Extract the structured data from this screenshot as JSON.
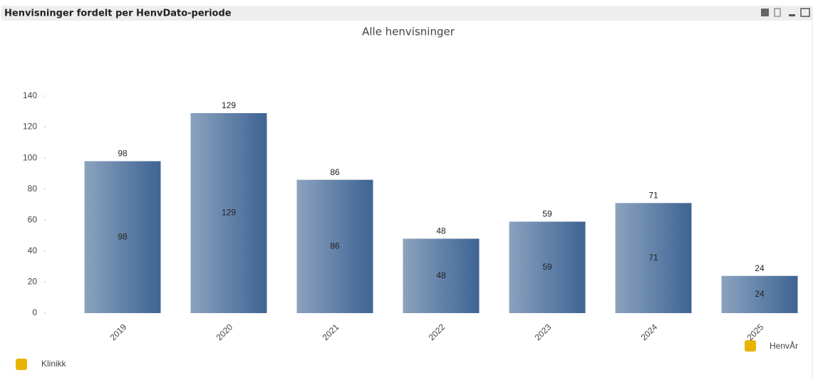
{
  "window_title": "Henvisninger fordelt per HenvDato-periode",
  "chart_data": {
    "type": "bar",
    "title": "Alle henvisninger",
    "categories": [
      "2019",
      "2020",
      "2021",
      "2022",
      "2023",
      "2024",
      "2025"
    ],
    "values": [
      98,
      129,
      86,
      48,
      59,
      71,
      24
    ],
    "color": "#3f6594",
    "ylim": [
      0,
      140
    ],
    "yticks": [
      0,
      20,
      40,
      60,
      80,
      100,
      120,
      140
    ],
    "x_dimension": "HenvÅr",
    "group_dimension": "Klinikk"
  }
}
